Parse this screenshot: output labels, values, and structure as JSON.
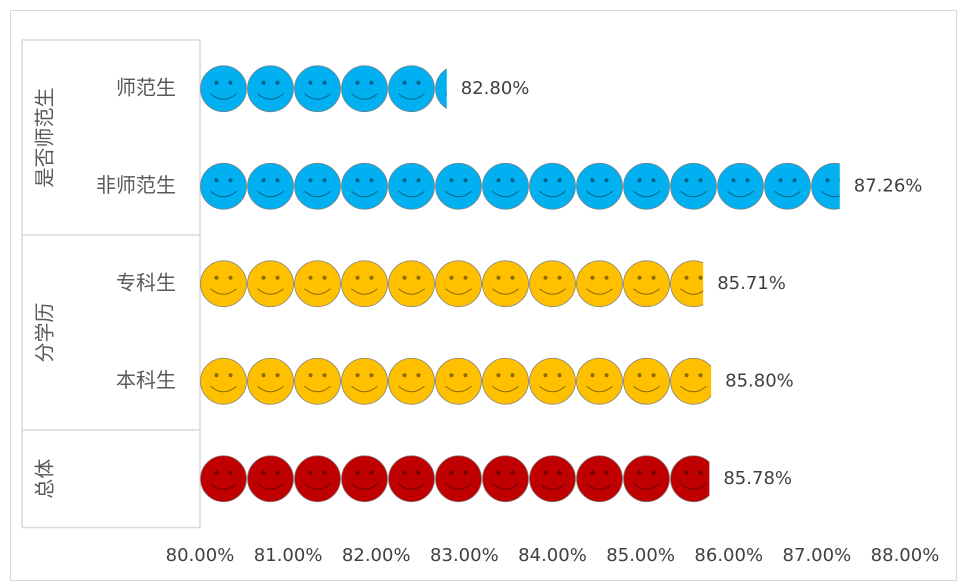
{
  "chart_data": {
    "type": "pictograph-bar",
    "groups": [
      {
        "name": "是否师范生",
        "size": 2
      },
      {
        "name": "分学历",
        "size": 2
      },
      {
        "name": "总体",
        "size": 1
      }
    ],
    "categories": [
      "师范生",
      "非师范生",
      "专科生",
      "本科生",
      null
    ],
    "values": [
      82.8,
      87.26,
      85.71,
      85.8,
      85.78
    ],
    "value_labels": [
      "82.80%",
      "87.26%",
      "85.71%",
      "85.80%",
      "85.78%"
    ],
    "colors": [
      "#00b0f0",
      "#00b0f0",
      "#ffc000",
      "#ffc000",
      "#c00000"
    ],
    "xlim": [
      80,
      88
    ],
    "xticks": [
      {
        "value": 80,
        "label": "80.00%"
      },
      {
        "value": 81,
        "label": "81.00%"
      },
      {
        "value": 82,
        "label": "82.00%"
      },
      {
        "value": 83,
        "label": "83.00%"
      },
      {
        "value": 84,
        "label": "84.00%"
      },
      {
        "value": 85,
        "label": "85.00%"
      },
      {
        "value": 86,
        "label": "86.00%"
      },
      {
        "value": 87,
        "label": "87.00%"
      },
      {
        "value": 88,
        "label": "88.00%"
      }
    ]
  }
}
